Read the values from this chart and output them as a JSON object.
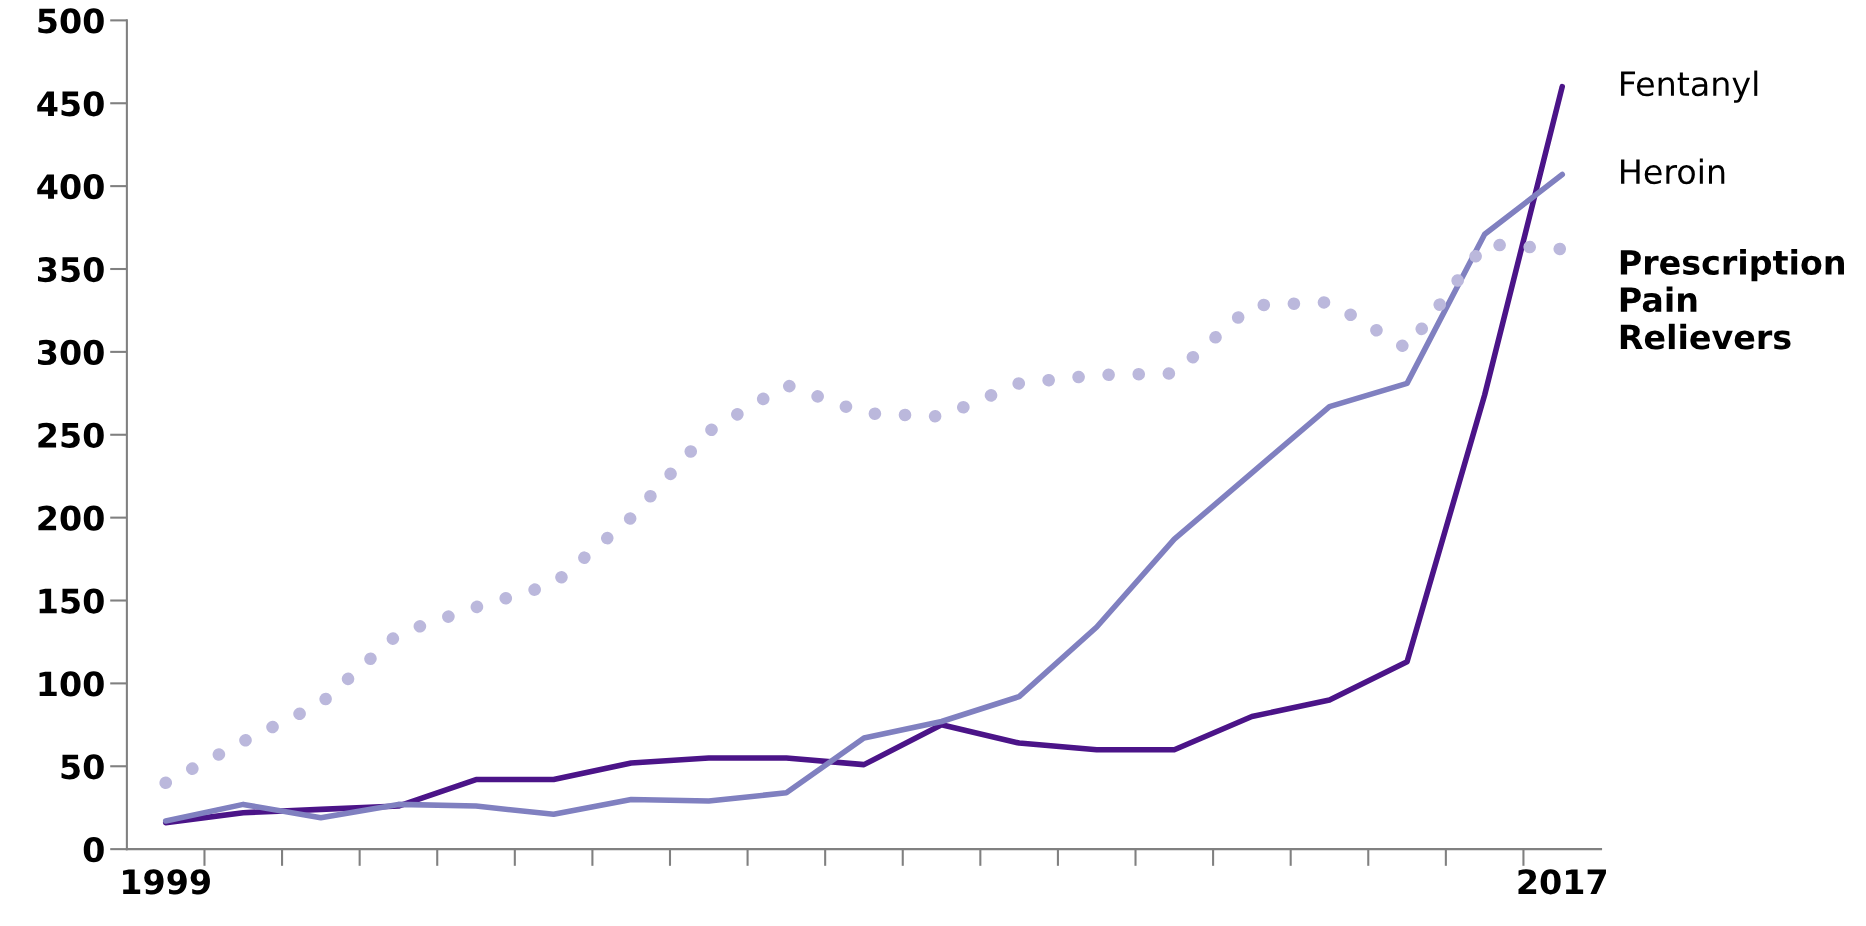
{
  "chart_data": {
    "type": "line",
    "x": [
      1999,
      2000,
      2001,
      2002,
      2003,
      2004,
      2005,
      2006,
      2007,
      2008,
      2009,
      2010,
      2011,
      2012,
      2013,
      2014,
      2015,
      2016,
      2017
    ],
    "xlim": [
      1998.5,
      2017.5
    ],
    "xticks": [
      1999,
      2017
    ],
    "ylim": [
      0,
      500
    ],
    "yticks": [
      0,
      50,
      100,
      150,
      200,
      250,
      300,
      350,
      400,
      450,
      500
    ],
    "grid": false,
    "legend": false,
    "series": [
      {
        "name": "Fentanyl",
        "color": "#4b1488",
        "line_style": "solid",
        "values": [
          16,
          22,
          24,
          26,
          42,
          42,
          52,
          55,
          55,
          51,
          75,
          64,
          60,
          60,
          80,
          90,
          113,
          274,
          460
        ]
      },
      {
        "name": "Heroin",
        "color": "#8080c0",
        "line_style": "solid",
        "values": [
          17,
          27,
          19,
          27,
          26,
          21,
          30,
          29,
          34,
          67,
          77,
          92,
          134,
          187,
          227,
          267,
          281,
          371,
          407
        ]
      },
      {
        "name": "Prescription Pain Relievers",
        "color": "#bbb8dc",
        "line_style": "dotted",
        "values": [
          40,
          65,
          88,
          130,
          146,
          160,
          200,
          252,
          280,
          263,
          261,
          281,
          286,
          287,
          328,
          330,
          302,
          365,
          362
        ]
      }
    ]
  }
}
